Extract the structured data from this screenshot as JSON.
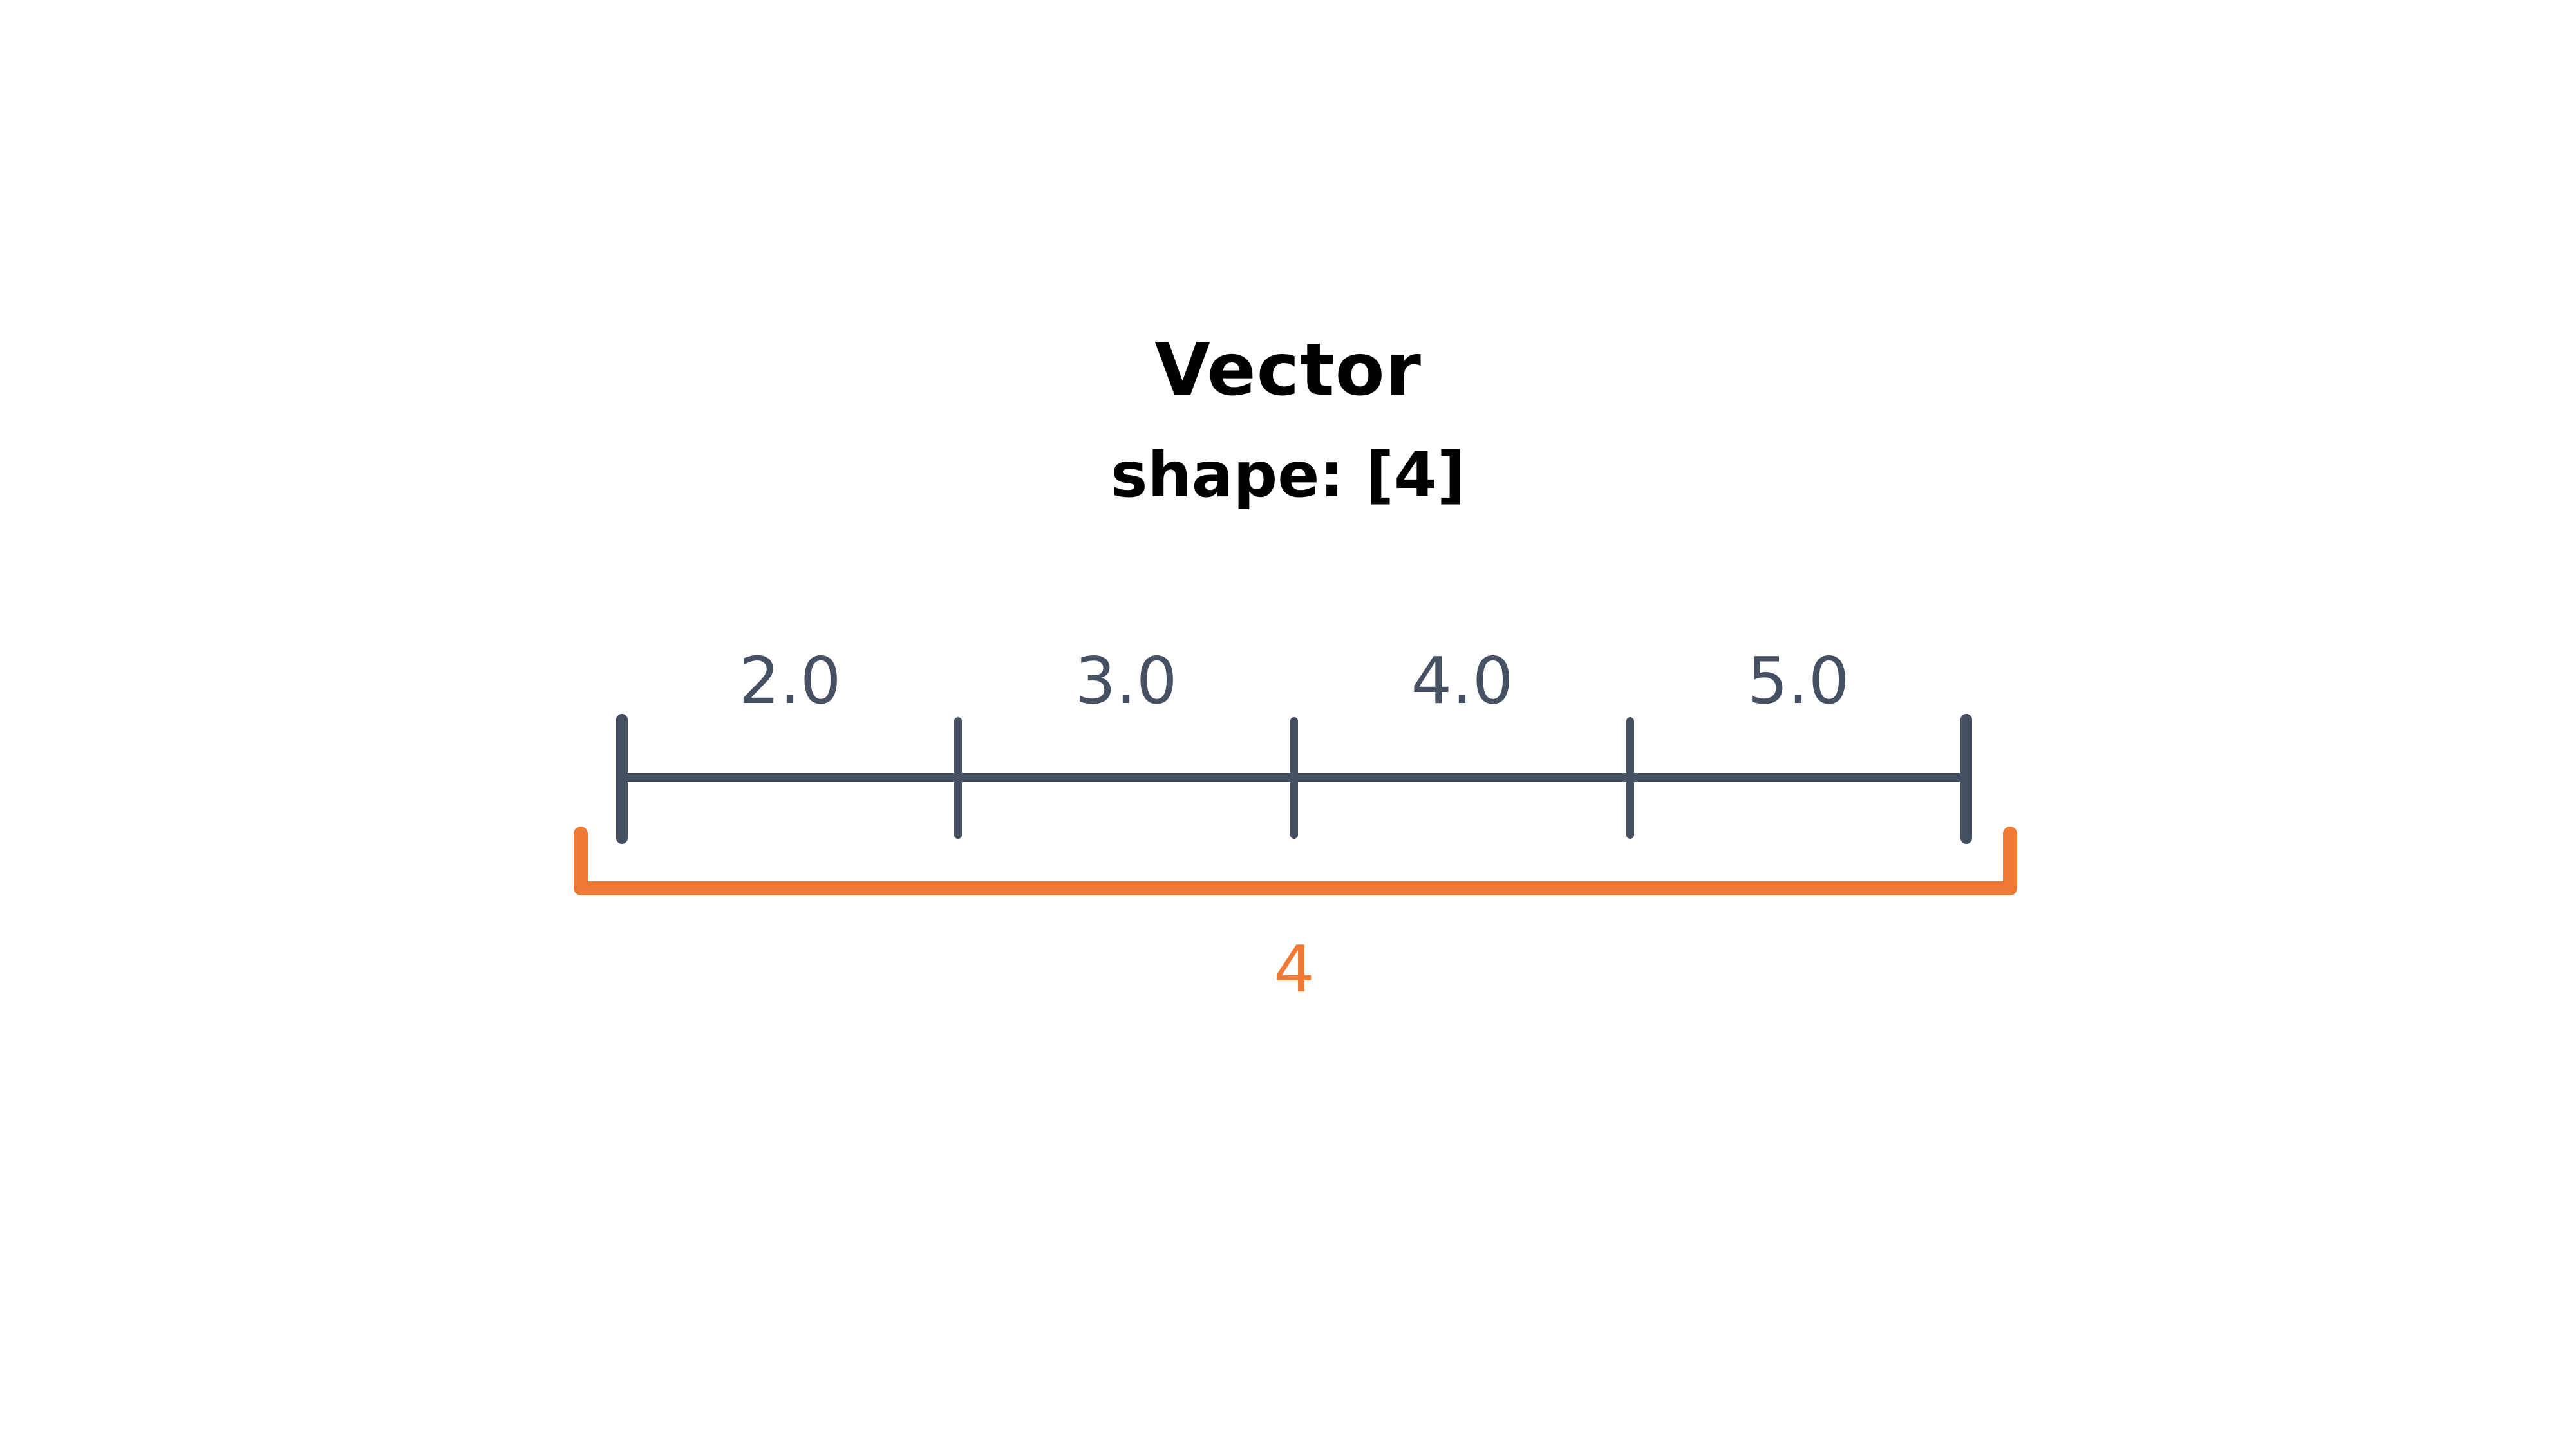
{
  "title": "Vector",
  "subtitle": "shape: [4]",
  "vector": {
    "values": [
      "2.0",
      "3.0",
      "4.0",
      "5.0"
    ],
    "length_label": "4"
  },
  "colors": {
    "title": "#000000",
    "axis": "#465063",
    "bracket": "#ef7a35"
  }
}
